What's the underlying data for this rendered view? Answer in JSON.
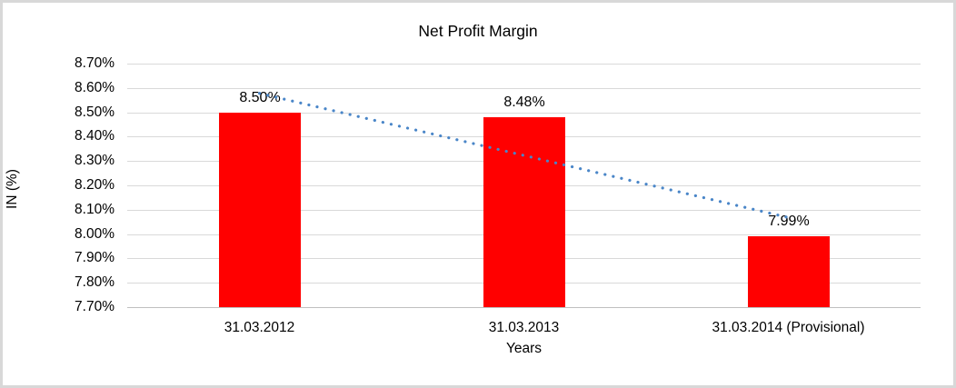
{
  "chart_data": {
    "type": "bar",
    "title": "Net Profit Margin",
    "xlabel": "Years",
    "ylabel": "IN (%)",
    "categories": [
      "31.03.2012",
      "31.03.2013",
      "31.03.2014 (Provisional)"
    ],
    "values": [
      8.5,
      8.48,
      7.99
    ],
    "data_labels": [
      "8.50%",
      "8.48%",
      "7.99%"
    ],
    "yticks": [
      "8.70%",
      "8.60%",
      "8.50%",
      "8.40%",
      "8.30%",
      "8.20%",
      "8.10%",
      "8.00%",
      "7.90%",
      "7.80%",
      "7.70%"
    ],
    "ylim": [
      7.7,
      8.7
    ],
    "grid": true,
    "legend": "none",
    "bar_color": "#ff0000",
    "gridline_color": "#d9d9d9",
    "axis_line_color": "#bfbfbf",
    "trendline": {
      "type": "linear",
      "style": "dotted",
      "color": "#4a86c8",
      "from_value": 8.578,
      "to_value": 8.068
    }
  }
}
